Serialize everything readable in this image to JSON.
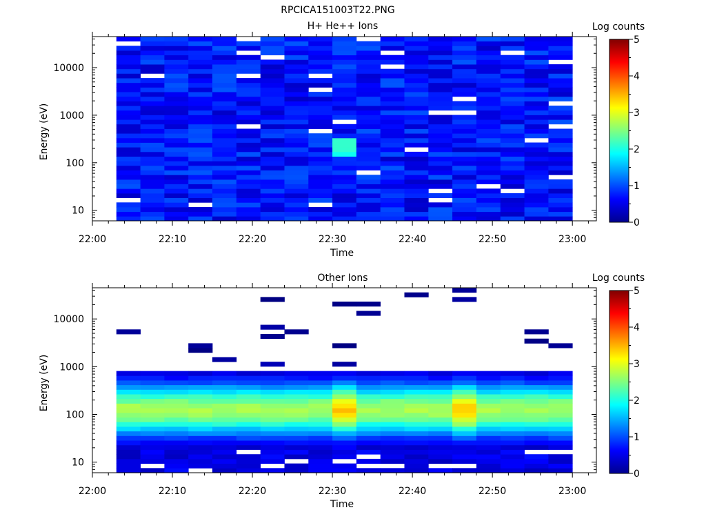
{
  "page": {
    "title": "RPCICA151003T22.PNG"
  },
  "chart_data": [
    {
      "type": "heatmap",
      "title": "H+ He++ Ions",
      "xlabel": "Time",
      "ylabel": "Energy (eV)",
      "x_ticks": [
        "22:00",
        "22:10",
        "22:20",
        "22:30",
        "22:40",
        "22:50",
        "23:00"
      ],
      "x_range": [
        "22:00",
        "23:03"
      ],
      "y_scale": "log",
      "y_ticks": [
        "10",
        "100",
        "1000",
        "10000"
      ],
      "y_range": [
        6,
        45000
      ],
      "time_bins": [
        "22:03-22:06",
        "22:06-22:09",
        "22:09-22:12",
        "22:12-22:15",
        "22:15-22:18",
        "22:18-22:21",
        "22:21-22:24",
        "22:24-22:27",
        "22:27-22:30",
        "22:30-22:33",
        "22:33-22:36",
        "22:36-22:39",
        "22:39-22:42",
        "22:42-22:45",
        "22:45-22:48",
        "22:48-22:51",
        "22:51-22:54",
        "22:54-22:57",
        "22:57-23:00"
      ],
      "colorbar": {
        "label": "Log counts",
        "range": [
          0,
          5
        ],
        "ticks": [
          "0",
          "1",
          "2",
          "3",
          "4",
          "5"
        ]
      },
      "description": "Mostly low counts (log ~0–1, blue) at all energies 6 eV–45 keV, with occasional gaps; slight enhancement (~1.5–2) near 150–300 eV around 22:33."
    },
    {
      "type": "heatmap",
      "title": "Other Ions",
      "xlabel": "Time",
      "ylabel": "Energy (eV)",
      "x_ticks": [
        "22:00",
        "22:10",
        "22:20",
        "22:30",
        "22:40",
        "22:50",
        "23:00"
      ],
      "x_range": [
        "22:00",
        "23:03"
      ],
      "y_scale": "log",
      "y_ticks": [
        "10",
        "100",
        "1000",
        "10000"
      ],
      "y_range": [
        6,
        45000
      ],
      "colorbar": {
        "label": "Log counts",
        "range": [
          0,
          5
        ],
        "ticks": [
          "0",
          "1",
          "2",
          "3",
          "4",
          "5"
        ]
      },
      "description": "Intense band (log ~2–3.5) between ~20 eV and ~800 eV, peaking near 100–200 eV; strongest around 22:33 and 22:46; sparse weak counts above 1 keV."
    }
  ]
}
